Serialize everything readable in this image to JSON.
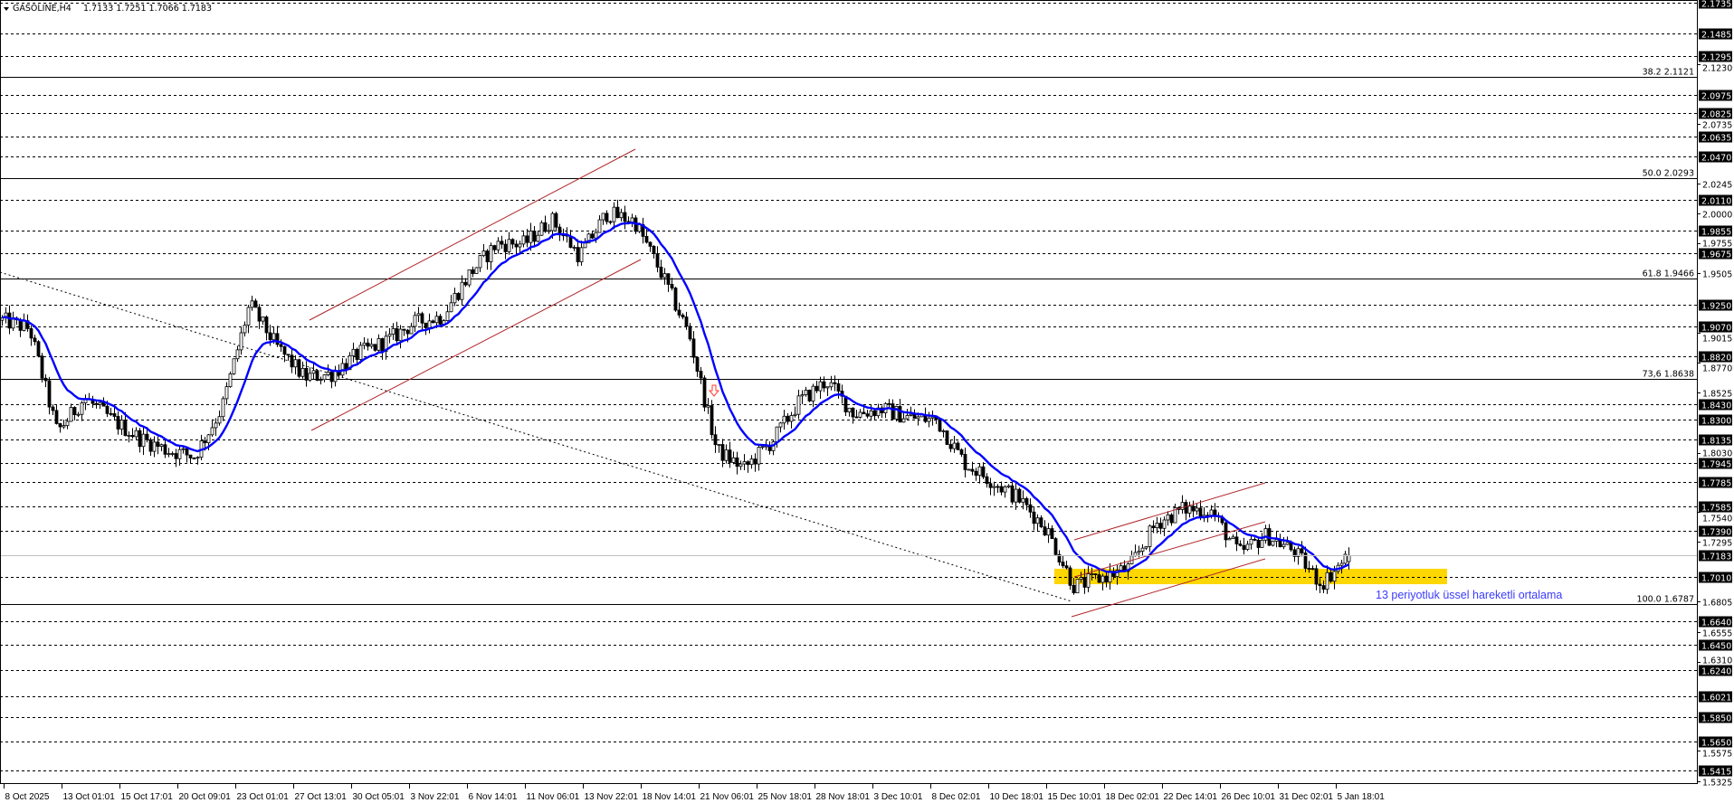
{
  "header": {
    "collapse_icon": "triangle-down-icon",
    "symbol": "GASOLINE,H4",
    "ohlc": "1.7133 1.7251 1.7066 1.7183"
  },
  "colors": {
    "background": "#ffffff",
    "candle_up": "#ffffff",
    "candle_down": "#000000",
    "ema": "#0000ff",
    "channel": "#b0272b",
    "zone": "#ffd700",
    "annotation": "#3b3bff",
    "arrow": "#ff3b30"
  },
  "price_axis": {
    "marked_levels": [
      "2.1735",
      "2.1485",
      "2.1295",
      "2.0975",
      "2.0825",
      "2.0635",
      "2.0470",
      "2.0110",
      "1.9855",
      "1.9675",
      "1.9250",
      "1.9070",
      "1.8820",
      "1.8430",
      "1.8300",
      "1.8135",
      "1.7945",
      "1.7785",
      "1.7585",
      "1.7390",
      "1.7010",
      "1.6640",
      "1.6450",
      "1.6240",
      "1.6021",
      "1.5850",
      "1.5650",
      "1.5415"
    ],
    "ticks": [
      "2.1230",
      "2.0735",
      "2.0245",
      "2.0000",
      "1.9755",
      "1.9505",
      "1.9015",
      "1.8770",
      "1.8525",
      "1.8030",
      "1.7540",
      "1.7295",
      "1.6805",
      "1.6555",
      "1.6310",
      "1.5575",
      "1.5325"
    ],
    "current_price": "1.7183"
  },
  "fibonacci": [
    {
      "label": "38.2 2.1121",
      "price": 2.1121
    },
    {
      "label": "50.0 2.0293",
      "price": 2.0293
    },
    {
      "label": "61.8 1.9466",
      "price": 1.9466
    },
    {
      "label": "73,6 1.8638",
      "price": 1.8638
    },
    {
      "label": "100.0 1.6787",
      "price": 1.6787
    }
  ],
  "time_axis": [
    "8 Oct 2025",
    "13 Oct 01:01",
    "15 Oct 17:01",
    "20 Oct 09:01",
    "23 Oct 01:01",
    "27 Oct 13:01",
    "30 Oct 05:01",
    "3 Nov 22:01",
    "6 Nov 14:01",
    "11 Nov 06:01",
    "13 Nov 22:01",
    "18 Nov 14:01",
    "21 Nov 06:01",
    "25 Nov 18:01",
    "28 Nov 18:01",
    "3 Dec 10:01",
    "8 Dec 02:01",
    "10 Dec 18:01",
    "15 Dec 10:01",
    "18 Dec 02:01",
    "22 Dec 14:01",
    "26 Dec 10:01",
    "31 Dec 02:01",
    "5 Jan 18:01"
  ],
  "annotation": "13 periyotluk üssel hareketli ortalama",
  "chart_data": {
    "type": "candlestick",
    "symbol": "GASOLINE",
    "timeframe": "H4",
    "ylim": [
      1.5325,
      2.1735
    ],
    "grid": false,
    "close_path": [
      1.912,
      1.905,
      1.82,
      1.848,
      1.83,
      1.815,
      1.805,
      1.8,
      1.84,
      1.925,
      1.89,
      1.865,
      1.868,
      1.885,
      1.895,
      1.91,
      1.915,
      1.95,
      1.975,
      1.975,
      1.995,
      1.965,
      2.0,
      1.994,
      1.95,
      1.9,
      1.805,
      1.79,
      1.812,
      1.845,
      1.862,
      1.835,
      1.839,
      1.832,
      1.83,
      1.795,
      1.78,
      1.765,
      1.74,
      1.693,
      1.7,
      1.708,
      1.745,
      1.757,
      1.755,
      1.72,
      1.735,
      1.722,
      1.695,
      1.7183
    ],
    "last_bar": {
      "open": 1.7133,
      "high": 1.7251,
      "low": 1.7066,
      "close": 1.7183
    },
    "ema_period": 13,
    "support_zone": [
      1.6947,
      1.7074
    ]
  }
}
